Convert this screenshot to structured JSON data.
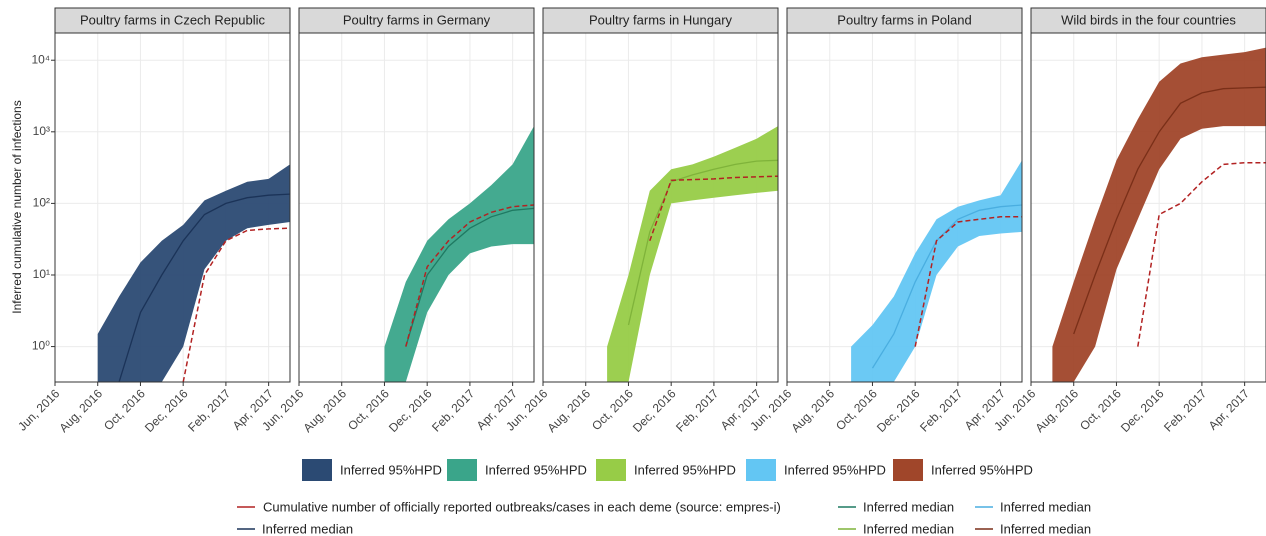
{
  "chart_data": {
    "type": "band",
    "y_label": "Inferred cumulative number of infections",
    "log_y": true,
    "grid": true,
    "ylim": [
      0.32,
      24000
    ],
    "yticks": [
      {
        "value": 1,
        "label": "10⁰"
      },
      {
        "value": 10,
        "label": "10¹"
      },
      {
        "value": 100,
        "label": "10²"
      },
      {
        "value": 1000,
        "label": "10³"
      },
      {
        "value": 10000,
        "label": "10⁴"
      }
    ],
    "xlim": [
      "2016-06",
      "2017-05"
    ],
    "xticks": [
      {
        "value": "2016-06",
        "label": "Jun, 2016"
      },
      {
        "value": "2016-08",
        "label": "Aug, 2016"
      },
      {
        "value": "2016-10",
        "label": "Oct, 2016"
      },
      {
        "value": "2016-12",
        "label": "Dec, 2016"
      },
      {
        "value": "2017-02",
        "label": "Feb, 2017"
      },
      {
        "value": "2017-04",
        "label": "Apr, 2017"
      }
    ],
    "x": [
      "2016-07",
      "2016-08",
      "2016-09",
      "2016-10",
      "2016-11",
      "2016-12",
      "2017-01",
      "2017-02",
      "2017-03",
      "2017-04",
      "2017-05"
    ],
    "reported_name": "Cumulative number of officially reported outbreaks/cases in each deme (source: empres-i)",
    "reported_color": "#b22222",
    "panels": [
      {
        "title": "Poultry farms in Czech Republic",
        "color": "#2b4a73",
        "median_color": "#1b3358",
        "hpd_name": "Inferred 95%HPD",
        "median_name": "Inferred median",
        "upper": [
          null,
          1.5,
          5,
          15,
          30,
          50,
          110,
          150,
          200,
          220,
          350
        ],
        "lower": [
          null,
          0.32,
          0.32,
          0.32,
          0.32,
          1,
          12,
          30,
          45,
          50,
          55
        ],
        "median": [
          null,
          null,
          0.32,
          3,
          10,
          30,
          70,
          100,
          120,
          130,
          135
        ],
        "reported": [
          null,
          null,
          null,
          null,
          null,
          0.32,
          10,
          30,
          42,
          44,
          45
        ]
      },
      {
        "title": "Poultry farms in Germany",
        "color": "#3aa58a",
        "median_color": "#1f7a62",
        "hpd_name": "Inferred 95%HPD",
        "median_name": "Inferred median",
        "upper": [
          null,
          null,
          null,
          1,
          8,
          30,
          60,
          100,
          180,
          350,
          1200
        ],
        "lower": [
          null,
          null,
          null,
          0.32,
          0.32,
          3,
          10,
          20,
          25,
          27,
          27
        ],
        "median": [
          null,
          null,
          null,
          null,
          1,
          10,
          25,
          45,
          65,
          80,
          85
        ],
        "reported": [
          null,
          null,
          null,
          null,
          1,
          13,
          30,
          55,
          75,
          90,
          95
        ]
      },
      {
        "title": "Poultry farms in Hungary",
        "color": "#97cc47",
        "median_color": "#7fb33a",
        "hpd_name": "Inferred 95%HPD",
        "median_name": "Inferred median",
        "upper": [
          null,
          null,
          1,
          10,
          150,
          300,
          350,
          450,
          600,
          800,
          1200
        ],
        "lower": [
          null,
          null,
          0.32,
          0.32,
          10,
          100,
          110,
          120,
          130,
          140,
          150
        ],
        "median": [
          null,
          null,
          null,
          2,
          40,
          200,
          250,
          300,
          350,
          390,
          400
        ],
        "reported": [
          null,
          null,
          null,
          null,
          30,
          210,
          215,
          220,
          230,
          235,
          240
        ]
      },
      {
        "title": "Poultry farms in Poland",
        "color": "#63c6f3",
        "median_color": "#4aaee0",
        "hpd_name": "Inferred 95%HPD",
        "median_name": "Inferred median",
        "upper": [
          null,
          null,
          1,
          2,
          5,
          20,
          60,
          90,
          110,
          130,
          400
        ],
        "lower": [
          null,
          null,
          0.32,
          0.32,
          0.32,
          1,
          10,
          25,
          35,
          38,
          40
        ],
        "median": [
          null,
          null,
          null,
          0.5,
          1.5,
          8,
          30,
          60,
          80,
          90,
          95
        ],
        "reported": [
          null,
          null,
          null,
          null,
          null,
          1,
          30,
          55,
          60,
          65,
          65
        ]
      },
      {
        "title": "Wild birds in the four countries",
        "color": "#a0462a",
        "median_color": "#7a2f18",
        "hpd_name": "Inferred 95%HPD",
        "median_name": "Inferred median",
        "upper": [
          1,
          8,
          60,
          400,
          1500,
          5000,
          9000,
          11000,
          12000,
          13000,
          15000
        ],
        "lower": [
          0.32,
          0.32,
          1,
          12,
          60,
          300,
          800,
          1100,
          1200,
          1200,
          1200
        ],
        "median": [
          null,
          1.5,
          10,
          60,
          300,
          1000,
          2500,
          3500,
          4000,
          4100,
          4200
        ],
        "reported": [
          null,
          null,
          null,
          null,
          1,
          70,
          100,
          200,
          350,
          370,
          370
        ]
      }
    ]
  }
}
